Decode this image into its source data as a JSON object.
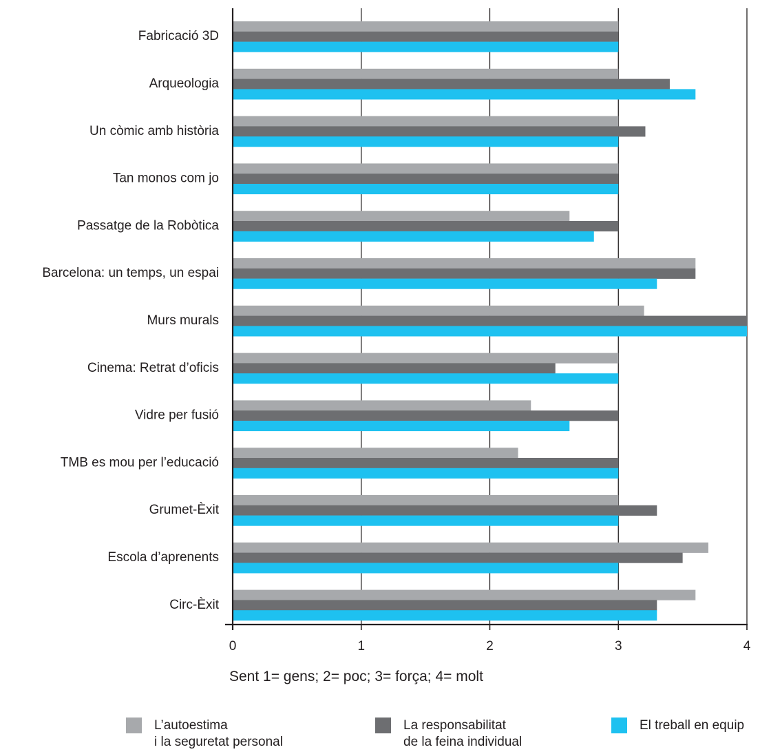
{
  "chart_data": {
    "type": "bar",
    "orientation": "horizontal",
    "categories": [
      "Fabricació 3D",
      "Arqueologia",
      "Un còmic amb història",
      "Tan monos com jo",
      "Passatge de la Robòtica",
      "Barcelona: un temps, un espai",
      "Murs murals",
      "Cinema: Retrat d’oficis",
      "Vidre per fusió",
      "TMB es mou per l’educació",
      "Grumet-Èxit",
      "Escola d’aprenents",
      "Circ-Èxit"
    ],
    "series": [
      {
        "name": "L’autoestima\ni la seguretat personal",
        "color": "#a7a9ac",
        "values": [
          3,
          3,
          3,
          3,
          2.62,
          3.6,
          3.2,
          3,
          2.32,
          2.22,
          3,
          3.7,
          3.6
        ]
      },
      {
        "name": "La responsabilitat\nde la feina individual",
        "color": "#6d6e71",
        "values": [
          3,
          3.4,
          3.21,
          3,
          3,
          3.6,
          4,
          2.51,
          3,
          3,
          3.3,
          3.5,
          3.3
        ]
      },
      {
        "name": "El treball en equip",
        "color": "#1ec1f0",
        "values": [
          3,
          3.6,
          3,
          3,
          2.81,
          3.3,
          4,
          3,
          2.62,
          3,
          3,
          3,
          3.3
        ]
      }
    ],
    "xlim": [
      0,
      4
    ],
    "xticks": [
      0,
      1,
      2,
      3,
      4
    ],
    "xlabel": "Sent 1= gens; 2= poc; 3= força; 4= molt",
    "ylabel": "",
    "title": "",
    "grid": true,
    "legend_position": "bottom"
  }
}
